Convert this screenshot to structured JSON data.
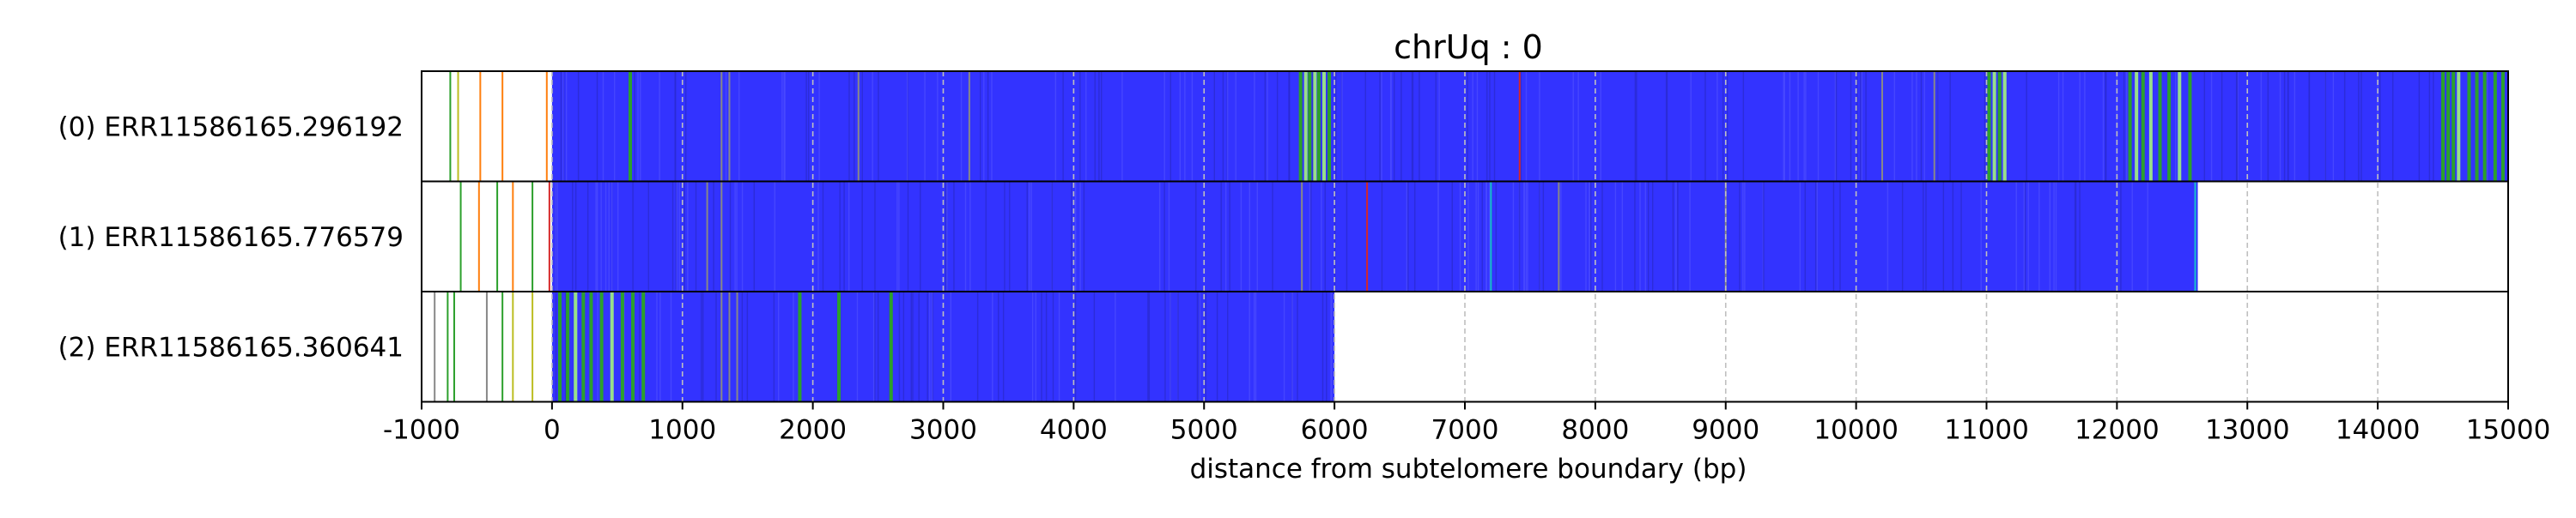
{
  "chart_data": {
    "type": "heatmap",
    "title": "chrUq : 0",
    "xlabel": "distance from subtelomere boundary (bp)",
    "ylabel": "",
    "xlim": [
      -1000,
      15000
    ],
    "x_ticks": [
      -1000,
      0,
      1000,
      2000,
      3000,
      4000,
      5000,
      6000,
      7000,
      8000,
      9000,
      10000,
      11000,
      12000,
      13000,
      14000,
      15000
    ],
    "x_tick_labels": [
      "-1000",
      "0",
      "1000",
      "2000",
      "3000",
      "4000",
      "5000",
      "6000",
      "7000",
      "8000",
      "9000",
      "10000",
      "11000",
      "12000",
      "13000",
      "14000",
      "15000"
    ],
    "grid": "vertical dashed",
    "colors": {
      "repeat": "#3333ff",
      "green": "#2ca02c",
      "light_green": "#98df8a",
      "orange": "#ff7f0e",
      "red": "#d62728",
      "cyan": "#17becf",
      "gray": "#888888",
      "gold": "#bcbd22"
    },
    "reads": [
      {
        "label": "(0) ERR11586165.296192",
        "start": -1000,
        "end": 15000,
        "repeat_start": 0,
        "repeat_end": 15000,
        "marks": [
          {
            "x": -780,
            "c": "green"
          },
          {
            "x": -720,
            "c": "gold"
          },
          {
            "x": -550,
            "c": "orange"
          },
          {
            "x": -380,
            "c": "orange"
          },
          {
            "x": -40,
            "c": "orange"
          },
          {
            "x": 600,
            "c": "green"
          },
          {
            "x": 1300,
            "c": "gray"
          },
          {
            "x": 1360,
            "c": "gray"
          },
          {
            "x": 2350,
            "c": "gray"
          },
          {
            "x": 3200,
            "c": "gray"
          },
          {
            "x": 5740,
            "c": "green"
          },
          {
            "x": 5780,
            "c": "light_green"
          },
          {
            "x": 5810,
            "c": "green"
          },
          {
            "x": 5850,
            "c": "light_green"
          },
          {
            "x": 5880,
            "c": "green"
          },
          {
            "x": 5920,
            "c": "light_green"
          },
          {
            "x": 5960,
            "c": "green"
          },
          {
            "x": 7420,
            "c": "red"
          },
          {
            "x": 10200,
            "c": "gray"
          },
          {
            "x": 10600,
            "c": "gray"
          },
          {
            "x": 11020,
            "c": "green"
          },
          {
            "x": 11060,
            "c": "light_green"
          },
          {
            "x": 11100,
            "c": "green"
          },
          {
            "x": 11140,
            "c": "light_green"
          },
          {
            "x": 12100,
            "c": "green"
          },
          {
            "x": 12150,
            "c": "light_green"
          },
          {
            "x": 12200,
            "c": "green"
          },
          {
            "x": 12260,
            "c": "light_green"
          },
          {
            "x": 12330,
            "c": "green"
          },
          {
            "x": 12400,
            "c": "green"
          },
          {
            "x": 12480,
            "c": "light_green"
          },
          {
            "x": 12560,
            "c": "green"
          },
          {
            "x": 14500,
            "c": "green"
          },
          {
            "x": 14540,
            "c": "green"
          },
          {
            "x": 14580,
            "c": "green"
          },
          {
            "x": 14620,
            "c": "light_green"
          },
          {
            "x": 14700,
            "c": "green"
          },
          {
            "x": 14760,
            "c": "green"
          },
          {
            "x": 14820,
            "c": "green"
          },
          {
            "x": 14900,
            "c": "green"
          },
          {
            "x": 14960,
            "c": "green"
          }
        ]
      },
      {
        "label": "(1) ERR11586165.776579",
        "start": -1000,
        "end": 12620,
        "repeat_start": 0,
        "repeat_end": 12620,
        "marks": [
          {
            "x": -700,
            "c": "green"
          },
          {
            "x": -560,
            "c": "orange"
          },
          {
            "x": -420,
            "c": "green"
          },
          {
            "x": -300,
            "c": "orange"
          },
          {
            "x": -150,
            "c": "green"
          },
          {
            "x": -20,
            "c": "red"
          },
          {
            "x": 1190,
            "c": "gray"
          },
          {
            "x": 1300,
            "c": "gray"
          },
          {
            "x": 5750,
            "c": "gray"
          },
          {
            "x": 6250,
            "c": "red"
          },
          {
            "x": 7200,
            "c": "cyan"
          },
          {
            "x": 7720,
            "c": "gray"
          },
          {
            "x": 9000,
            "c": "gray"
          },
          {
            "x": 12600,
            "c": "cyan"
          }
        ]
      },
      {
        "label": "(2) ERR11586165.360641",
        "start": -1000,
        "end": 6000,
        "repeat_start": 0,
        "repeat_end": 6000,
        "marks": [
          {
            "x": -900,
            "c": "gray"
          },
          {
            "x": -800,
            "c": "green"
          },
          {
            "x": -750,
            "c": "green"
          },
          {
            "x": -500,
            "c": "gray"
          },
          {
            "x": -380,
            "c": "green"
          },
          {
            "x": -300,
            "c": "gold"
          },
          {
            "x": -150,
            "c": "gold"
          },
          {
            "x": 60,
            "c": "green"
          },
          {
            "x": 120,
            "c": "green"
          },
          {
            "x": 180,
            "c": "light_green"
          },
          {
            "x": 240,
            "c": "green"
          },
          {
            "x": 300,
            "c": "green"
          },
          {
            "x": 380,
            "c": "green"
          },
          {
            "x": 460,
            "c": "light_green"
          },
          {
            "x": 540,
            "c": "green"
          },
          {
            "x": 620,
            "c": "green"
          },
          {
            "x": 700,
            "c": "green"
          },
          {
            "x": 1300,
            "c": "gray"
          },
          {
            "x": 1360,
            "c": "gray"
          },
          {
            "x": 1420,
            "c": "gray"
          },
          {
            "x": 1900,
            "c": "green"
          },
          {
            "x": 2200,
            "c": "green"
          },
          {
            "x": 2600,
            "c": "green"
          }
        ]
      }
    ]
  }
}
